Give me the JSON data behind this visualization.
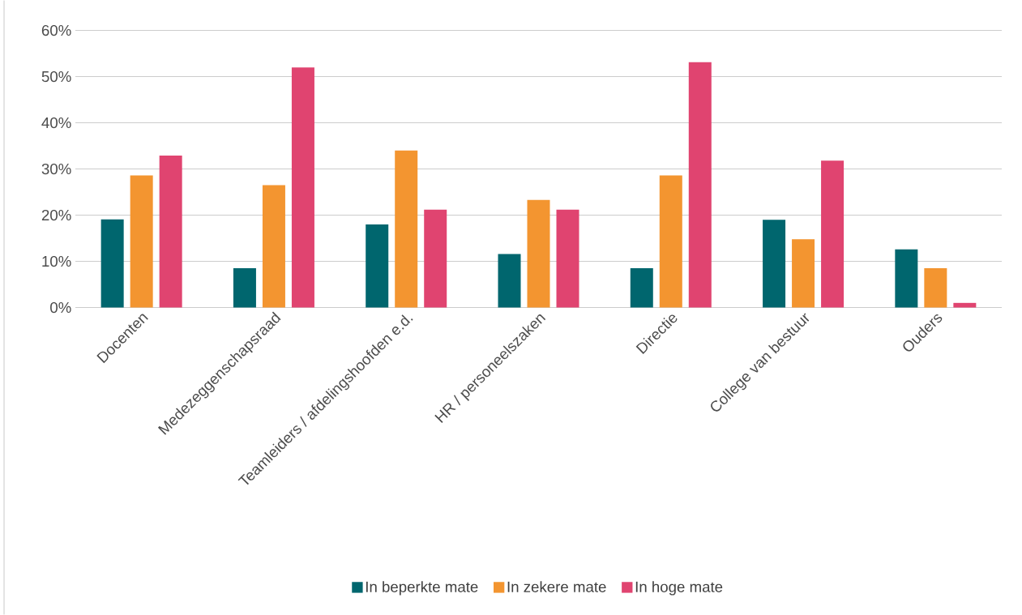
{
  "chart_data": {
    "type": "bar",
    "categories": [
      "Docenten",
      "Medezeggenschapsraad",
      "Teamleiders / afdelingshoofden e.d.",
      "HR / personeelszaken",
      "Directie",
      "College van bestuur",
      "Ouders"
    ],
    "series": [
      {
        "name": "In beperkte mate",
        "color": "#00666e",
        "values": [
          19.1,
          8.5,
          18.0,
          11.6,
          8.5,
          19.0,
          12.6
        ]
      },
      {
        "name": "In zekere mate",
        "color": "#f39530",
        "values": [
          28.6,
          26.5,
          34.0,
          23.3,
          28.6,
          14.8,
          8.5
        ]
      },
      {
        "name": "In hoge mate",
        "color": "#e04470",
        "values": [
          32.9,
          52.0,
          21.2,
          21.2,
          53.1,
          31.8,
          1.0
        ]
      }
    ],
    "ylim": [
      0,
      60
    ],
    "yticks": [
      {
        "value": 0,
        "label": "0%"
      },
      {
        "value": 10,
        "label": "10%"
      },
      {
        "value": 20,
        "label": "20%"
      },
      {
        "value": 30,
        "label": "30%"
      },
      {
        "value": 40,
        "label": "40%"
      },
      {
        "value": 50,
        "label": "50%"
      },
      {
        "value": 60,
        "label": "60%"
      }
    ],
    "grid": "y",
    "legend": "bottom"
  }
}
